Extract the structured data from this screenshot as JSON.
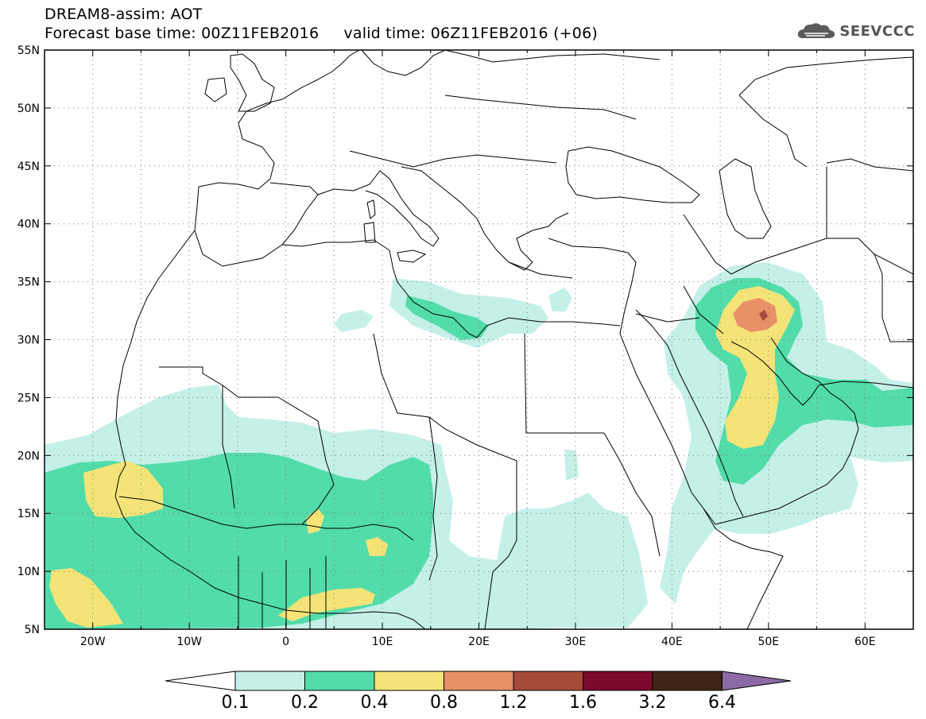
{
  "header": {
    "line1": "DREAM8-assim: AOT",
    "line2": "Forecast base time: 00Z11FEB2016     valid time: 06Z11FEB2016 (+06)"
  },
  "logo": {
    "text": "SEEVCCC",
    "icon": "cloud-logo-icon"
  },
  "map": {
    "lon_range": [
      -25,
      65
    ],
    "lat_range": [
      5,
      55
    ],
    "lon_ticks": [
      {
        "value": -20,
        "label": "20W"
      },
      {
        "value": -10,
        "label": "10W"
      },
      {
        "value": 0,
        "label": "0"
      },
      {
        "value": 10,
        "label": "10E"
      },
      {
        "value": 20,
        "label": "20E"
      },
      {
        "value": 30,
        "label": "30E"
      },
      {
        "value": 40,
        "label": "40E"
      },
      {
        "value": 50,
        "label": "50E"
      },
      {
        "value": 60,
        "label": "60E"
      }
    ],
    "lat_ticks": [
      {
        "value": 55,
        "label": "55N"
      },
      {
        "value": 50,
        "label": "50N"
      },
      {
        "value": 45,
        "label": "45N"
      },
      {
        "value": 40,
        "label": "40N"
      },
      {
        "value": 35,
        "label": "35N"
      },
      {
        "value": 30,
        "label": "30N"
      },
      {
        "value": 25,
        "label": "25N"
      },
      {
        "value": 20,
        "label": "20N"
      },
      {
        "value": 15,
        "label": "15N"
      },
      {
        "value": 10,
        "label": "10N"
      },
      {
        "value": 5,
        "label": "5N"
      }
    ]
  },
  "legend": {
    "levels": [
      "0.1",
      "0.2",
      "0.4",
      "0.8",
      "1.2",
      "1.6",
      "3.2",
      "6.4"
    ],
    "colors": [
      "#ffffff",
      "#c4f0e8",
      "#52dcaa",
      "#f4e478",
      "#e99068",
      "#a64a3a",
      "#7c0a2c",
      "#3e2516",
      "#8b6aa6"
    ]
  }
}
